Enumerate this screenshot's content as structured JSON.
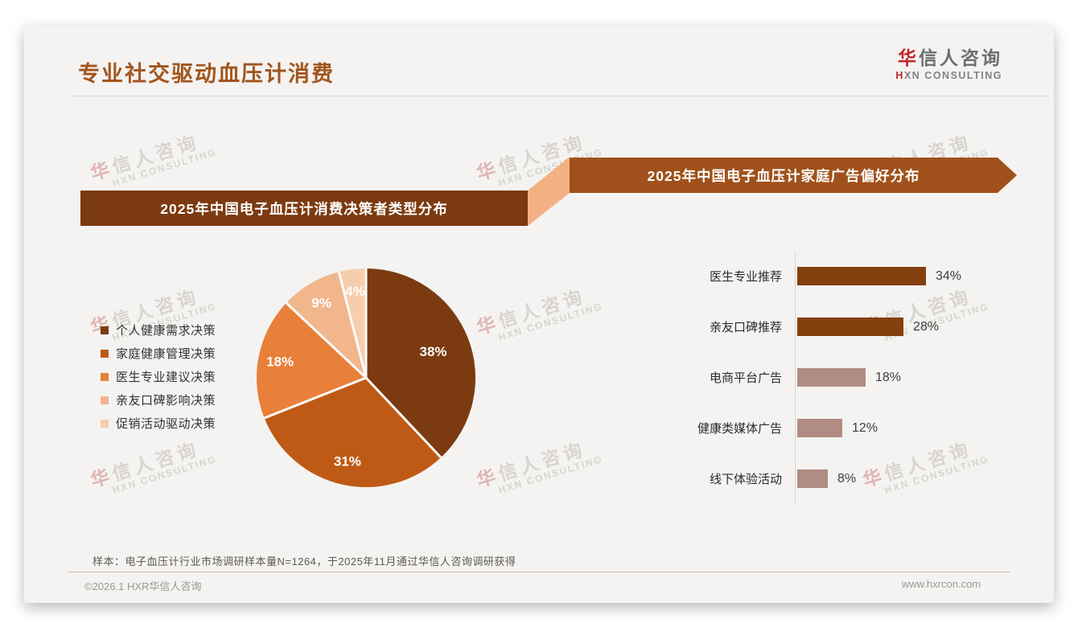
{
  "header": {
    "title": "专业社交驱动血压计消费",
    "logo_cn_accent": "华",
    "logo_cn_rest": "信人咨询",
    "logo_en_accent": "H",
    "logo_en_rest": "XN CONSULTING"
  },
  "watermark": {
    "cn": "华信人咨询",
    "en": "HXN CONSULTING"
  },
  "theme": {
    "accent_red": "#C0272D",
    "title_color": "#A2551D",
    "banner_left_bg": "#7C3A10",
    "banner_right_bg": "#A0511B",
    "ribbon_fold_bg": "#F3B183",
    "card_bg": "#F4F3F1"
  },
  "chart_data": [
    {
      "type": "pie",
      "title": "2025年中国电子血压计消费决策者类型分布",
      "legend_position": "left",
      "labels": "inside-percent",
      "slices": [
        {
          "label": "个人健康需求决策",
          "value": 38,
          "color": "#7C3A10"
        },
        {
          "label": "家庭健康管理决策",
          "value": 31,
          "color": "#BE5A15"
        },
        {
          "label": "医生专业建议决策",
          "value": 18,
          "color": "#E8803A"
        },
        {
          "label": "亲友口碑影响决策",
          "value": 9,
          "color": "#F1B68C"
        },
        {
          "label": "促销活动驱动决策",
          "value": 4,
          "color": "#F6CEAC"
        }
      ]
    },
    {
      "type": "bar",
      "title": "2025年中国电子血压计家庭广告偏好分布",
      "orientation": "horizontal",
      "categories": [
        "医生专业推荐",
        "亲友口碑推荐",
        "电商平台广告",
        "健康类媒体广告",
        "线下体验活动"
      ],
      "values": [
        34,
        28,
        18,
        12,
        8
      ],
      "value_suffix": "%",
      "bar_colors": [
        "#84400F",
        "#84400F",
        "#B18C83",
        "#B18C83",
        "#B18C83"
      ],
      "xlim": [
        0,
        40
      ],
      "grid": false
    }
  ],
  "footer": {
    "note": "样本：电子血压计行业市场调研样本量N=1264，于2025年11月通过华信人咨询调研获得",
    "copyright": "©2026.1 HXR华信人咨询",
    "website": "www.hxrcon.com"
  }
}
